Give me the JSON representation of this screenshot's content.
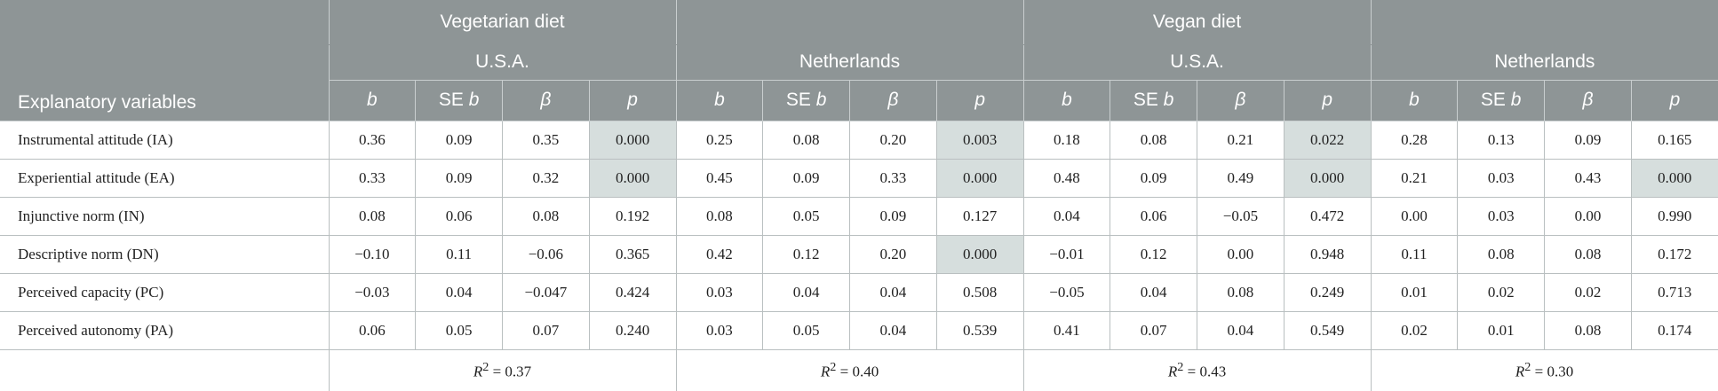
{
  "table": {
    "header": {
      "row_label": "Explanatory variables",
      "diets": [
        "Vegetarian diet",
        "Vegan diet"
      ],
      "countries": [
        "U.S.A.",
        "Netherlands",
        "U.S.A.",
        "Netherlands"
      ],
      "columns": [
        {
          "text": "b"
        },
        {
          "prefix": "SE",
          "text": "b"
        },
        {
          "text": "β"
        },
        {
          "text": "p"
        },
        {
          "text": "b"
        },
        {
          "prefix": "SE",
          "text": "b"
        },
        {
          "text": "β"
        },
        {
          "text": "p"
        },
        {
          "text": "b"
        },
        {
          "prefix": "SE",
          "text": "b"
        },
        {
          "text": "β"
        },
        {
          "text": "p"
        },
        {
          "text": "b"
        },
        {
          "prefix": "SE",
          "text": "b"
        },
        {
          "text": "β"
        },
        {
          "text": "p"
        }
      ]
    },
    "rows": [
      {
        "label": "Instrumental attitude (IA)",
        "cells": [
          "0.36",
          "0.09",
          "0.35",
          "0.000",
          "0.25",
          "0.08",
          "0.20",
          "0.003",
          "0.18",
          "0.08",
          "0.21",
          "0.022",
          "0.28",
          "0.13",
          "0.09",
          "0.165"
        ],
        "highlighted": [
          3,
          7,
          11
        ]
      },
      {
        "label": "Experiential attitude (EA)",
        "cells": [
          "0.33",
          "0.09",
          "0.32",
          "0.000",
          "0.45",
          "0.09",
          "0.33",
          "0.000",
          "0.48",
          "0.09",
          "0.49",
          "0.000",
          "0.21",
          "0.03",
          "0.43",
          "0.000"
        ],
        "highlighted": [
          3,
          7,
          11,
          15
        ]
      },
      {
        "label": "Injunctive norm (IN)",
        "cells": [
          "0.08",
          "0.06",
          "0.08",
          "0.192",
          "0.08",
          "0.05",
          "0.09",
          "0.127",
          "0.04",
          "0.06",
          "−0.05",
          "0.472",
          "0.00",
          "0.03",
          "0.00",
          "0.990"
        ],
        "highlighted": []
      },
      {
        "label": "Descriptive norm (DN)",
        "cells": [
          "−0.10",
          "0.11",
          "−0.06",
          "0.365",
          "0.42",
          "0.12",
          "0.20",
          "0.000",
          "−0.01",
          "0.12",
          "0.00",
          "0.948",
          "0.11",
          "0.08",
          "0.08",
          "0.172"
        ],
        "highlighted": [
          7
        ]
      },
      {
        "label": "Perceived capacity (PC)",
        "cells": [
          "−0.03",
          "0.04",
          "−0.047",
          "0.424",
          "0.03",
          "0.04",
          "0.04",
          "0.508",
          "−0.05",
          "0.04",
          "0.08",
          "0.249",
          "0.01",
          "0.02",
          "0.02",
          "0.713"
        ],
        "highlighted": []
      },
      {
        "label": "Perceived autonomy (PA)",
        "cells": [
          "0.06",
          "0.05",
          "0.07",
          "0.240",
          "0.03",
          "0.05",
          "0.04",
          "0.539",
          "0.41",
          "0.07",
          "0.04",
          "0.549",
          "0.02",
          "0.01",
          "0.08",
          "0.174"
        ],
        "highlighted": []
      }
    ],
    "r_squared": [
      {
        "symbol": "R",
        "sup": "2",
        "text": "= 0.37"
      },
      {
        "symbol": "R",
        "sup": "2",
        "text": "= 0.40"
      },
      {
        "symbol": "R",
        "sup": "2",
        "text": "= 0.43"
      },
      {
        "symbol": "R",
        "sup": "2",
        "text": "= 0.30"
      }
    ]
  }
}
